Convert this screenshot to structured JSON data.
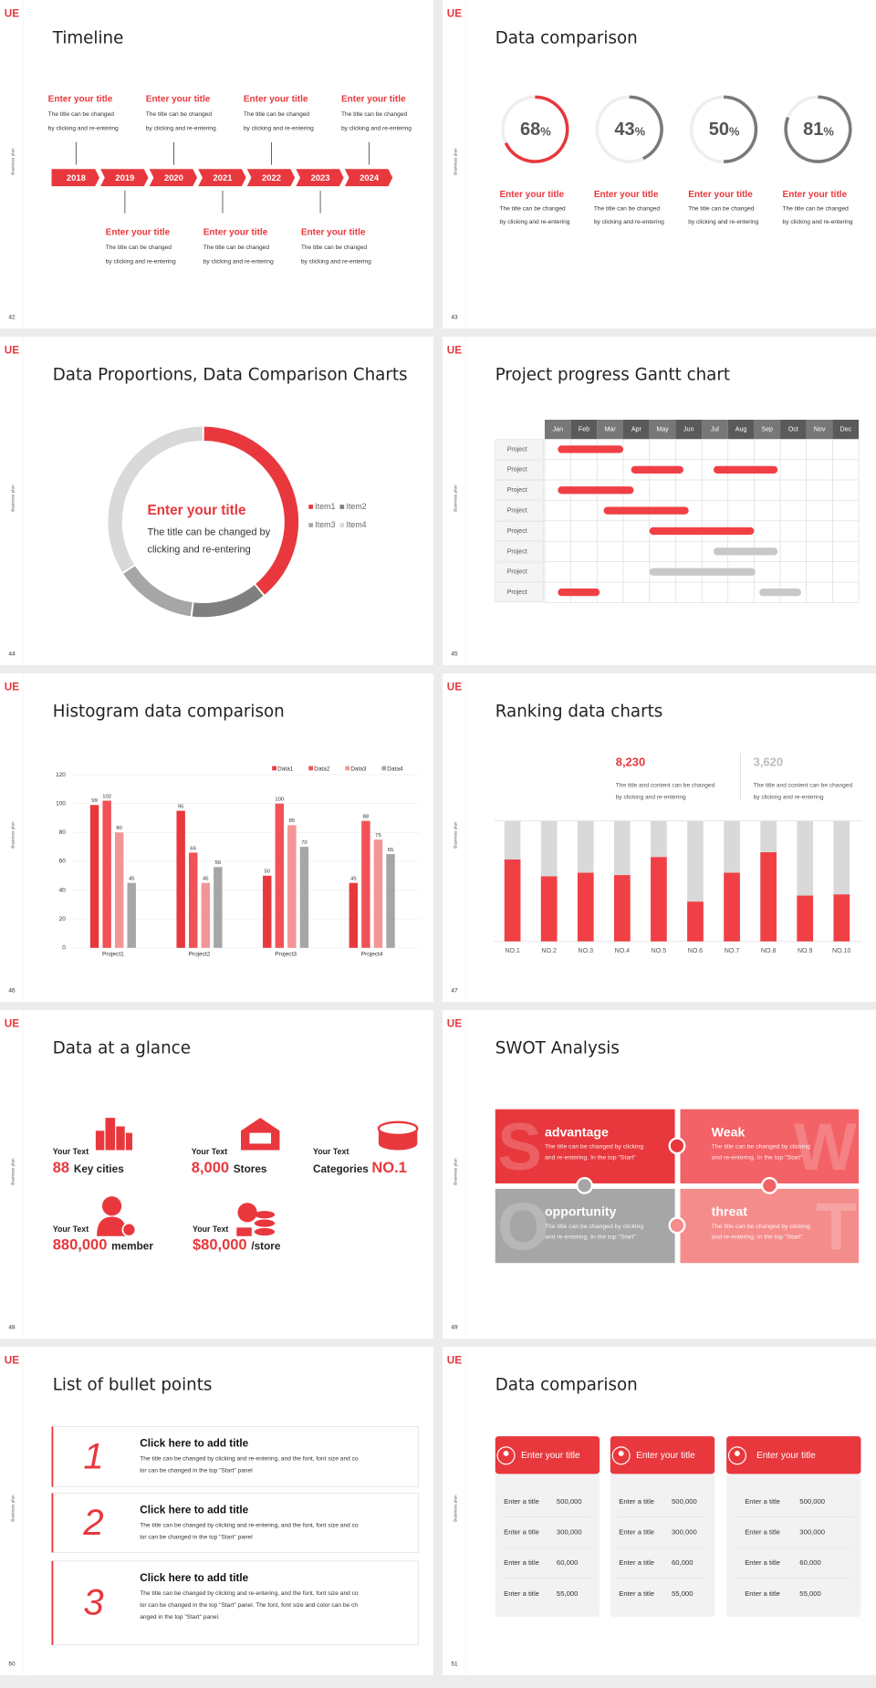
{
  "brand": "UE",
  "side_label": "Business plan",
  "slides": [
    {
      "page": 42,
      "title": "Timeline",
      "years": [
        2018,
        2019,
        2020,
        2021,
        2022,
        2023,
        2024
      ],
      "top_items": [
        {
          "title": "Enter your title",
          "desc": [
            "The title can be changed",
            "by clicking and re-entering"
          ]
        },
        {
          "title": "Enter your title",
          "desc": [
            "The title can be changed",
            "by clicking and re-entering"
          ]
        },
        {
          "title": "Enter your title",
          "desc": [
            "The title can be changed",
            "by clicking and re-entering"
          ]
        },
        {
          "title": "Enter your title",
          "desc": [
            "The title can be changed",
            "by clicking and re-entering"
          ]
        }
      ],
      "bottom_items": [
        {
          "title": "Enter your title",
          "desc": [
            "The title can be changed",
            "by clicking and re-entering"
          ]
        },
        {
          "title": "Enter your title",
          "desc": [
            "The title can be changed",
            "by clicking and re-entering"
          ]
        },
        {
          "title": "Enter your title",
          "desc": [
            "The title can be changed",
            "by clicking and re-entering"
          ]
        }
      ]
    },
    {
      "page": 43,
      "title": "Data comparison",
      "ylim": [
        0,
        100
      ],
      "circles": [
        {
          "value": 68,
          "unit": "%",
          "color": "#e8383d",
          "title": "Enter your title",
          "desc": [
            "The title can be changed",
            "by clicking and re-entering"
          ]
        },
        {
          "value": 43,
          "unit": "%",
          "color": "#7a7a7a",
          "title": "Enter your title",
          "desc": [
            "The title can be changed",
            "by clicking and re-entering"
          ]
        },
        {
          "value": 50,
          "unit": "%",
          "color": "#7a7a7a",
          "title": "Enter your title",
          "desc": [
            "The title can be changed",
            "by clicking and re-entering"
          ]
        },
        {
          "value": 81,
          "unit": "%",
          "color": "#7a7a7a",
          "title": "Enter your title",
          "desc": [
            "The title can be changed",
            "by clicking and re-entering"
          ]
        }
      ]
    },
    {
      "page": 44,
      "title": "Data Proportions, Data Comparison Charts",
      "chart": {
        "type": "donut",
        "series": [
          {
            "name": "Item1",
            "value": 39,
            "color": "#e8383d"
          },
          {
            "name": "Item2",
            "value": 13,
            "color": "#7f7f7f"
          },
          {
            "name": "Item3",
            "value": 14,
            "color": "#a6a6a6"
          },
          {
            "name": "Item4",
            "value": 34,
            "color": "#d9d9d9"
          }
        ],
        "center_title": "Enter your title",
        "center_text": [
          "The title can be changed by",
          "clicking and re-entering"
        ]
      }
    },
    {
      "page": 45,
      "title": "Project progress Gantt chart",
      "months": [
        "Jan",
        "Feb",
        "Mar",
        "Apr",
        "May",
        "Jun",
        "Jul",
        "Aug",
        "Sep",
        "Oct",
        "Nov",
        "Dec"
      ],
      "rows": [
        {
          "label": "Project",
          "bars": [
            {
              "start": 0.5,
              "end": 3,
              "color": "#f04045"
            }
          ]
        },
        {
          "label": "Project",
          "bars": [
            {
              "start": 3.3,
              "end": 5.3,
              "color": "#f04045"
            },
            {
              "start": 6.45,
              "end": 8.9,
              "color": "#f04045"
            }
          ]
        },
        {
          "label": "Project",
          "bars": [
            {
              "start": 0.5,
              "end": 3.4,
              "color": "#f04045"
            }
          ]
        },
        {
          "label": "Project",
          "bars": [
            {
              "start": 2.25,
              "end": 5.5,
              "color": "#f04045"
            }
          ]
        },
        {
          "label": "Project",
          "bars": [
            {
              "start": 4,
              "end": 8,
              "color": "#f04045"
            }
          ]
        },
        {
          "label": "Project",
          "bars": [
            {
              "start": 6.45,
              "end": 8.9,
              "color": "#c8c8c8"
            }
          ]
        },
        {
          "label": "Project",
          "bars": [
            {
              "start": 4,
              "end": 8.05,
              "color": "#c8c8c8"
            }
          ]
        },
        {
          "label": "Project",
          "bars": [
            {
              "start": 0.5,
              "end": 2.1,
              "color": "#f04045"
            },
            {
              "start": 8.2,
              "end": 9.8,
              "color": "#c8c8c8"
            }
          ]
        }
      ]
    },
    {
      "page": 46,
      "title": "Histogram data comparison",
      "chart": {
        "type": "bar",
        "categories": [
          "Project1",
          "Project2",
          "Project3",
          "Project4"
        ],
        "series": [
          {
            "name": "Data1",
            "color": "#e8383d",
            "values": [
              99,
              95,
              50,
              45
            ]
          },
          {
            "name": "Data2",
            "color": "#f05257",
            "values": [
              102,
              66,
              100,
              88
            ]
          },
          {
            "name": "Data3",
            "color": "#f39595",
            "values": [
              80,
              45,
              85,
              75
            ]
          },
          {
            "name": "Data4",
            "color": "#a6a6a6",
            "values": [
              45,
              56,
              70,
              65
            ]
          }
        ],
        "ylim": [
          0,
          120
        ],
        "yticks": [
          0,
          20,
          40,
          60,
          80,
          100,
          120
        ],
        "grid": true
      }
    },
    {
      "page": 47,
      "title": "Ranking data charts",
      "highlights": [
        {
          "value": "8,230",
          "color": "#e8383d",
          "desc": [
            "The title and content can be changed",
            "by clicking and re-entering"
          ]
        },
        {
          "value": "3,620",
          "color": "#bdbdbd",
          "desc": [
            "The title and content can be changed",
            "by clicking and re-entering"
          ]
        }
      ],
      "chart": {
        "type": "bar",
        "categories": [
          "NO.1",
          "NO.2",
          "NO.3",
          "NO.4",
          "NO.5",
          "NO.6",
          "NO.7",
          "NO.8",
          "NO.9",
          "NO.10"
        ],
        "values": [
          68,
          54,
          57,
          55,
          70,
          33,
          57,
          74,
          38,
          39
        ],
        "ylim": [
          0,
          100
        ],
        "color": "#f04045"
      }
    },
    {
      "page": 48,
      "title": "Data at a glance",
      "stats": [
        {
          "label": "Your Text",
          "value": "88",
          "suffix": "Key cities"
        },
        {
          "label": "Your Text",
          "value": "8,000",
          "suffix": "Stores"
        },
        {
          "label": "Your Text",
          "prefix": "Categories",
          "value": "NO.1"
        },
        {
          "label": "Your Text",
          "value": "880,000",
          "suffix": "member"
        },
        {
          "label": "Your Text",
          "value": "$80,000",
          "suffix": "/store"
        }
      ]
    },
    {
      "page": 49,
      "title": "SWOT Analysis",
      "quadrants": [
        {
          "letter": "S",
          "title": "advantage",
          "desc": [
            "The title can be changed by clicking",
            "and re-entering. In the top \"Start\""
          ]
        },
        {
          "letter": "W",
          "title": "Weak",
          "desc": [
            "The title can be changed by clicking",
            "and re-entering. In the top \"Start\""
          ]
        },
        {
          "letter": "O",
          "title": "opportunity",
          "desc": [
            "The title can be changed by clicking",
            "and re-entering. In the top \"Start\""
          ]
        },
        {
          "letter": "T",
          "title": "threat",
          "desc": [
            "The title can be changed by clicking",
            "and re-entering. In the top \"Start\""
          ]
        }
      ]
    },
    {
      "page": 50,
      "title": "List of bullet points",
      "items": [
        {
          "number": 1,
          "title": "Click here to add title",
          "desc": [
            "The title can be changed by clicking and re-entering, and the font, font size and co",
            "lor can be changed in the top \"Start\" panel"
          ]
        },
        {
          "number": 2,
          "title": "Click here to add title",
          "desc": [
            "The title can be changed by clicking and re-entering, and the font, font size and co",
            "lor can be changed in the top \"Start\" panel"
          ]
        },
        {
          "number": 3,
          "title": "Click here to add title",
          "desc": [
            "The title can be changed by clicking and re-entering, and the font, font size and co",
            "lor can be changed in the top \"Start\" panel. The font, font size and color can be ch",
            "anged in the top \"Start\" panel."
          ]
        }
      ]
    },
    {
      "page": 51,
      "title": "Data comparison",
      "cards": [
        {
          "title": "Enter your title",
          "rows": [
            [
              "Enter a title",
              "500,000"
            ],
            [
              "Enter a title",
              "300,000"
            ],
            [
              "Enter a title",
              "60,000"
            ],
            [
              "Enter a title",
              "55,000"
            ]
          ]
        },
        {
          "title": "Enter your title",
          "rows": [
            [
              "Enter a title",
              "500,000"
            ],
            [
              "Enter a title",
              "300,000"
            ],
            [
              "Enter a title",
              "60,000"
            ],
            [
              "Enter a title",
              "55,000"
            ]
          ]
        },
        {
          "title": "Enter your title",
          "rows": [
            [
              "Enter a title",
              "500,000"
            ],
            [
              "Enter a title",
              "300,000"
            ],
            [
              "Enter a title",
              "60,000"
            ],
            [
              "Enter a title",
              "55,000"
            ]
          ]
        }
      ]
    }
  ]
}
